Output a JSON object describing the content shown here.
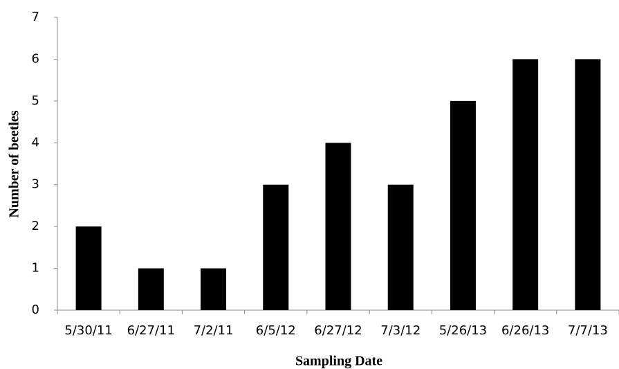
{
  "chart_data": {
    "type": "bar",
    "categories": [
      "5/30/11",
      "6/27/11",
      "7/2/11",
      "6/5/12",
      "6/27/12",
      "7/3/12",
      "5/26/13",
      "6/26/13",
      "7/7/13"
    ],
    "values": [
      2,
      1,
      1,
      3,
      4,
      3,
      5,
      6,
      6
    ],
    "color": "#000000",
    "ylim": [
      0,
      7
    ],
    "yticks": [
      0,
      1,
      2,
      3,
      4,
      5,
      6,
      7
    ],
    "grid": false,
    "x_label": "Sampling Date",
    "y_label": "Number of beetles"
  }
}
